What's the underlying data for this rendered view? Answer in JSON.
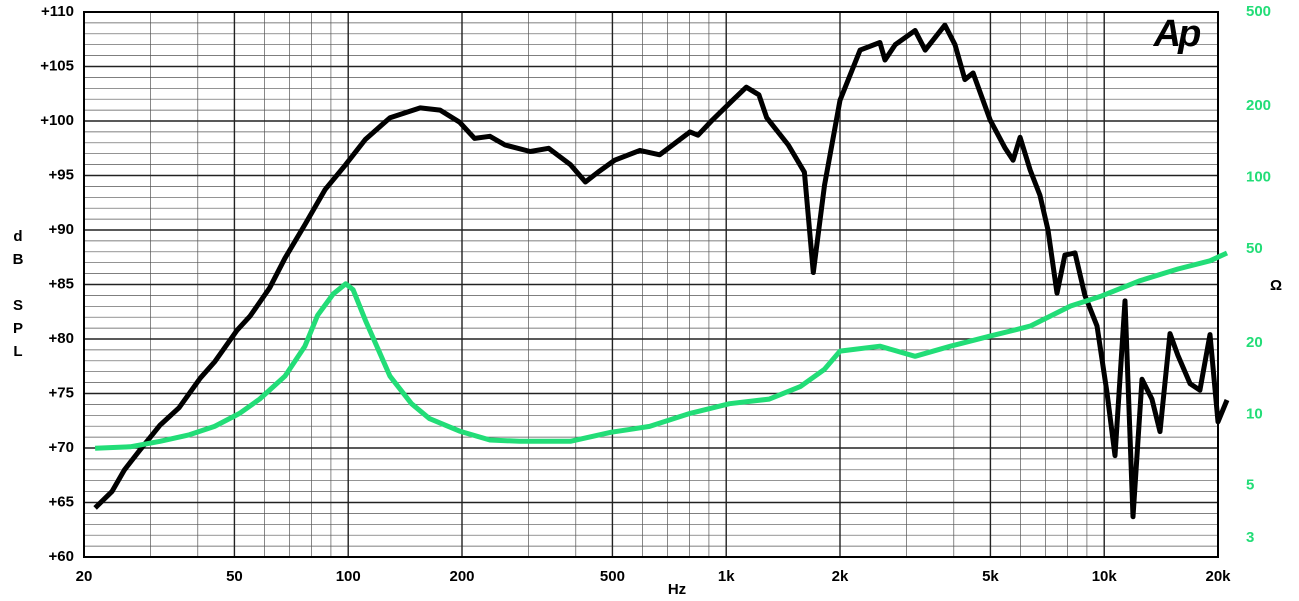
{
  "chart_data": {
    "type": "line",
    "logo": "Ap",
    "x_label": "Hz",
    "y_label": "dB SPL",
    "y2_label": "Ω",
    "xscale": "log",
    "y2scale": "log",
    "grid": true,
    "xlim": [
      20,
      20000
    ],
    "xticks": [
      20,
      50,
      100,
      200,
      500,
      {
        "value": 1000,
        "label": "1k"
      },
      {
        "value": 2000,
        "label": "2k"
      },
      {
        "value": 5000,
        "label": "5k"
      },
      {
        "value": 10000,
        "label": "10k"
      },
      {
        "value": 20000,
        "label": "20k"
      }
    ],
    "ylim": [
      60,
      110
    ],
    "yticks": [
      {
        "value": 60,
        "label": "+60"
      },
      {
        "value": 65,
        "label": "+65"
      },
      {
        "value": 70,
        "label": "+70"
      },
      {
        "value": 75,
        "label": "+75"
      },
      {
        "value": 80,
        "label": "+80"
      },
      {
        "value": 85,
        "label": "+85"
      },
      {
        "value": 90,
        "label": "+90"
      },
      {
        "value": 95,
        "label": "+95"
      },
      {
        "value": 100,
        "label": "+100"
      },
      {
        "value": 105,
        "label": "+105"
      },
      {
        "value": 110,
        "label": "+110"
      }
    ],
    "y2lim": [
      2.5,
      500
    ],
    "y2ticks": [
      3,
      5,
      10,
      20,
      50,
      100,
      200,
      500
    ],
    "y2_color": "#22dd77",
    "series": [
      {
        "name": "SPL",
        "color": "#000000",
        "x": [
          21.4,
          23.7,
          25.6,
          28.1,
          31.8,
          35.7,
          40.6,
          44.3,
          50.8,
          55,
          62,
          68,
          76.8,
          86.8,
          98.5,
          111,
          129,
          155,
          175,
          197,
          216,
          237,
          260,
          303,
          339,
          387,
          424,
          458,
          507,
          591,
          667,
          802,
          842,
          920,
          1040,
          1130,
          1220,
          1280,
          1460,
          1610,
          1700,
          1820,
          2000,
          2260,
          2550,
          2630,
          2800,
          3160,
          3360,
          3790,
          4030,
          4280,
          4500,
          4990,
          5470,
          5740,
          5990,
          6370,
          6760,
          7100,
          7500,
          7870,
          8370,
          8890,
          9570,
          10160,
          10680,
          11350,
          11920,
          12590,
          13370,
          14050,
          14930,
          15670,
          16870,
          17910,
          19050,
          20000,
          21130
        ],
        "values": [
          64.5,
          66,
          68,
          69.8,
          72.1,
          73.7,
          76.4,
          77.9,
          80.8,
          82.1,
          84.7,
          87.4,
          90.5,
          93.7,
          96,
          98.3,
          100.3,
          101.2,
          101,
          99.9,
          98.4,
          98.6,
          97.8,
          97.2,
          97.5,
          96,
          94.4,
          95.3,
          96.4,
          97.3,
          96.9,
          99,
          98.7,
          100.1,
          101.9,
          103.1,
          102.4,
          100.3,
          97.8,
          95.3,
          86.1,
          94.1,
          101.9,
          106.5,
          107.2,
          105.6,
          107,
          108.3,
          106.5,
          108.8,
          107,
          103.8,
          104.4,
          100.1,
          97.5,
          96.4,
          98.5,
          95.5,
          93.2,
          90,
          84.2,
          87.7,
          87.9,
          84,
          81.2,
          75.2,
          69.3,
          83.5,
          63.7,
          76.3,
          74.5,
          71.5,
          80.5,
          78.5,
          75.9,
          75.3,
          80.4,
          72.4,
          74.4
        ]
      },
      {
        "name": "Impedance",
        "color": "#22dd77",
        "axis": "y2",
        "x": [
          21.4,
          26.5,
          31.8,
          38,
          44.3,
          51.6,
          58.3,
          68,
          76.8,
          83,
          91.2,
          98.5,
          103,
          111,
          119,
          129,
          147,
          164,
          197,
          237,
          284,
          387,
          495,
          627,
          802,
          1020,
          1300,
          1570,
          1820,
          2000,
          2550,
          3160,
          3920,
          4990,
          6370,
          8150,
          9830,
          12380,
          15670,
          19050,
          21130
        ],
        "values": [
          7.2,
          7.3,
          7.7,
          8.2,
          8.9,
          10.1,
          11.6,
          14.5,
          19.4,
          26.2,
          32.2,
          35.6,
          33.6,
          25,
          19.4,
          14.5,
          11.1,
          9.6,
          8.5,
          7.8,
          7.7,
          7.7,
          8.4,
          8.9,
          10.1,
          11.1,
          11.6,
          13.1,
          15.5,
          18.5,
          19.4,
          17.6,
          19.4,
          21.4,
          23.6,
          28.7,
          31.6,
          36.6,
          41.1,
          44.5,
          48
        ]
      }
    ]
  }
}
